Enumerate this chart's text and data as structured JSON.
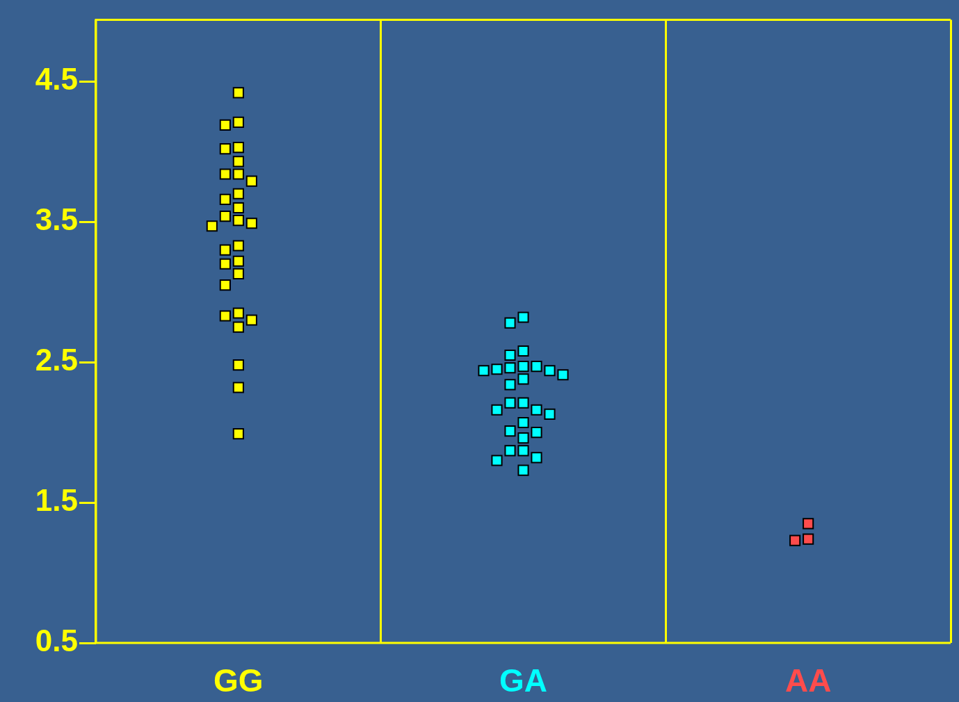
{
  "chart_data": {
    "type": "scatter",
    "marker": "square",
    "grid": "x",
    "legend": false,
    "categories": [
      "GG",
      "GA",
      "AA"
    ],
    "ylim": [
      0.5,
      4.94
    ],
    "yticks": [
      0.5,
      1.5,
      2.5,
      3.5,
      4.5
    ],
    "series": [
      {
        "color": "#ffff00",
        "x": [
          "GG",
          "GG",
          "GG",
          "GG",
          "GG",
          "GG",
          "GG",
          "GG",
          "GG",
          "GG",
          "GG",
          "GG",
          "GG",
          "GG",
          "GG",
          "GG",
          "GG",
          "GG",
          "GG",
          "GG",
          "GG",
          "GG",
          "GG",
          "GG",
          "GG",
          "GG",
          "GG",
          "GG",
          "GG"
        ],
        "values": [
          4.21,
          3.84,
          3.7,
          3.51,
          3.3,
          2.83,
          4.42,
          4.19,
          4.03,
          3.93,
          3.79,
          3.6,
          3.47,
          3.33,
          3.22,
          3.13,
          3.05,
          2.85,
          2.75,
          2.48,
          2.32,
          1.99,
          4.02,
          3.84,
          3.66,
          3.49,
          3.2,
          2.8,
          3.54
        ]
      },
      {
        "color": "#00ffff",
        "x": [
          "GA",
          "GA",
          "GA",
          "GA",
          "GA",
          "GA",
          "GA",
          "GA",
          "GA",
          "GA",
          "GA",
          "GA",
          "GA",
          "GA",
          "GA",
          "GA",
          "GA",
          "GA",
          "GA",
          "GA",
          "GA",
          "GA",
          "GA",
          "GA",
          "GA",
          "GA",
          "GA"
        ],
        "values": [
          2.46,
          2.44,
          2.13,
          2.82,
          2.41,
          2.16,
          1.82,
          2.78,
          2.55,
          2.45,
          2.34,
          2.21,
          2.07,
          1.96,
          1.87,
          1.73,
          2.58,
          2.38,
          2.16,
          2.0,
          1.8,
          2.44,
          2.21,
          2.01,
          1.87,
          2.47,
          2.47
        ]
      },
      {
        "color": "#ff4c4c",
        "x": [
          "AA",
          "AA",
          "AA"
        ],
        "values": [
          1.35,
          1.23,
          1.24
        ]
      }
    ]
  }
}
